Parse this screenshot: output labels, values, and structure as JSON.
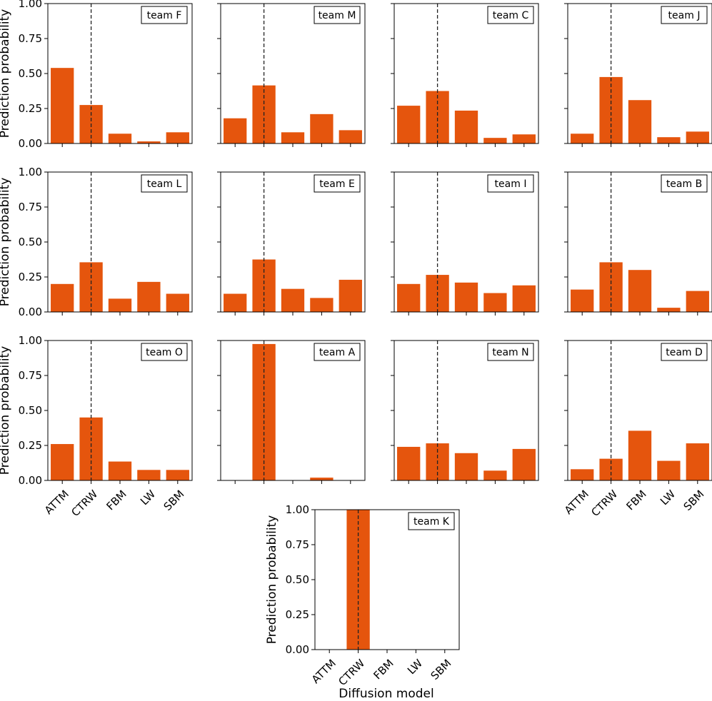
{
  "figure": {
    "ylabel": "Prediction probability",
    "xlabel": "Diffusion model"
  },
  "chart_data": {
    "type": "bar",
    "categories": [
      "ATTM",
      "CTRW",
      "FBM",
      "LW",
      "SBM"
    ],
    "ylim": [
      0,
      1
    ],
    "yticks": [
      0,
      0.25,
      0.5,
      0.75,
      1
    ],
    "ytick_labels": [
      "0.00",
      "0.25",
      "0.50",
      "0.75",
      "1.00"
    ],
    "true_model": "CTRW",
    "bar_color": "#e5550d",
    "reference_line": "dashed vertical line at CTRW",
    "legend_position": "top-right",
    "grid": false,
    "panels": [
      {
        "team": "team F",
        "values": [
          0.54,
          0.275,
          0.07,
          0.015,
          0.08
        ]
      },
      {
        "team": "team M",
        "values": [
          0.18,
          0.415,
          0.08,
          0.21,
          0.095
        ]
      },
      {
        "team": "team C",
        "values": [
          0.27,
          0.375,
          0.235,
          0.04,
          0.065
        ]
      },
      {
        "team": "team J",
        "values": [
          0.07,
          0.475,
          0.31,
          0.045,
          0.085
        ]
      },
      {
        "team": "team L",
        "values": [
          0.2,
          0.355,
          0.095,
          0.215,
          0.13
        ]
      },
      {
        "team": "team E",
        "values": [
          0.13,
          0.375,
          0.165,
          0.1,
          0.23
        ]
      },
      {
        "team": "team I",
        "values": [
          0.2,
          0.265,
          0.21,
          0.135,
          0.19
        ]
      },
      {
        "team": "team B",
        "values": [
          0.16,
          0.355,
          0.3,
          0.03,
          0.15
        ]
      },
      {
        "team": "team O",
        "values": [
          0.26,
          0.45,
          0.135,
          0.075,
          0.075
        ]
      },
      {
        "team": "team A",
        "values": [
          0.0,
          0.975,
          0.0,
          0.02,
          0.0
        ]
      },
      {
        "team": "team N",
        "values": [
          0.24,
          0.265,
          0.195,
          0.07,
          0.225
        ]
      },
      {
        "team": "team D",
        "values": [
          0.08,
          0.155,
          0.355,
          0.14,
          0.265
        ]
      },
      {
        "team": "team K",
        "values": [
          0.0,
          1.0,
          0.0,
          0.0,
          0.0
        ]
      }
    ]
  }
}
